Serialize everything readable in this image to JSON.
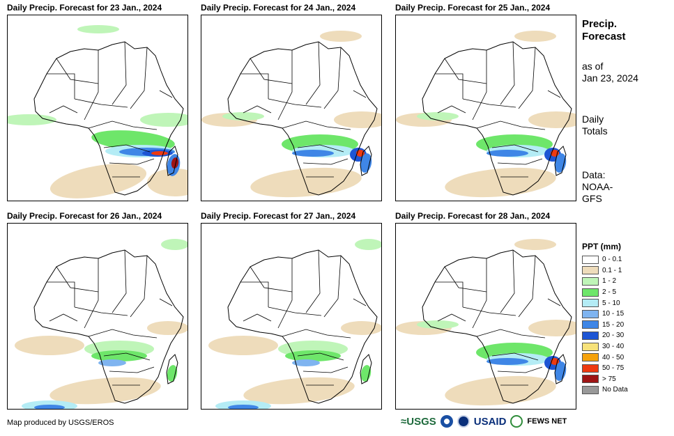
{
  "panels": [
    {
      "title": "Daily Precip. Forecast for 23 Jan., 2024",
      "intensity": "heavy"
    },
    {
      "title": "Daily Precip. Forecast for 24 Jan., 2024",
      "intensity": "medium"
    },
    {
      "title": "Daily Precip. Forecast for 25 Jan., 2024",
      "intensity": "medium"
    },
    {
      "title": "Daily Precip. Forecast for 26 Jan., 2024",
      "intensity": "light"
    },
    {
      "title": "Daily Precip. Forecast for 27 Jan., 2024",
      "intensity": "light"
    },
    {
      "title": "Daily Precip. Forecast for 28 Jan., 2024",
      "intensity": "medium"
    }
  ],
  "side": {
    "title_line1": "Precip.",
    "title_line2": "Forecast",
    "asof_line1": "as of",
    "asof_line2": "Jan 23, 2024",
    "totals_line1": "Daily",
    "totals_line2": "Totals",
    "data_line1": "Data:",
    "data_line2": "NOAA-",
    "data_line3": "GFS"
  },
  "legend": {
    "title": "PPT (mm)",
    "items": [
      {
        "label": "0 - 0.1",
        "color": "#ffffff"
      },
      {
        "label": "0.1 - 1",
        "color": "#eedcbb"
      },
      {
        "label": "1 - 2",
        "color": "#bff5b8"
      },
      {
        "label": "2 - 5",
        "color": "#6ee66a"
      },
      {
        "label": "5 - 10",
        "color": "#b4ecf5"
      },
      {
        "label": "10 - 15",
        "color": "#7fb4f0"
      },
      {
        "label": "15 - 20",
        "color": "#3f86e6"
      },
      {
        "label": "20 - 30",
        "color": "#1d55d4"
      },
      {
        "label": "30 - 40",
        "color": "#f7e27a"
      },
      {
        "label": "40 - 50",
        "color": "#f5a20c"
      },
      {
        "label": "50 - 75",
        "color": "#ee3a10"
      },
      {
        "label": "> 75",
        "color": "#9e1414"
      },
      {
        "label": "No Data",
        "color": "#999999"
      }
    ]
  },
  "credit": "Map produced by USGS/EROS",
  "logos": {
    "usgs": "≈USGS",
    "usaid": "USAID",
    "fews": "FEWS NET"
  }
}
